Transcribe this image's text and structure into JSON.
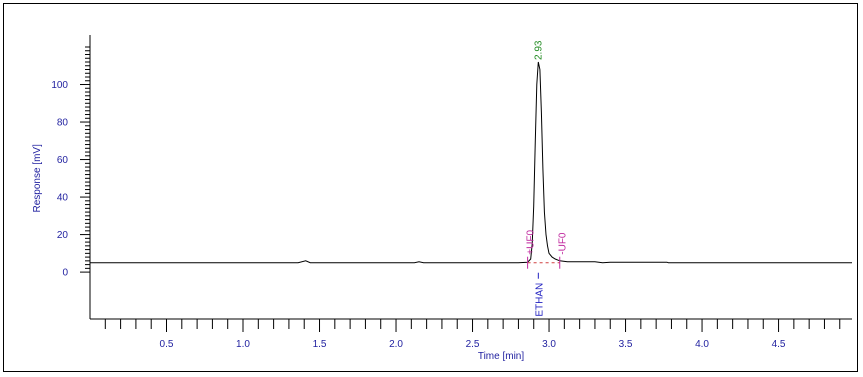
{
  "chart_data": {
    "type": "line",
    "title": "",
    "xlabel": "Time [min]",
    "ylabel": "Response [mV]",
    "xlim": [
      0,
      4.98
    ],
    "ylim": [
      -25,
      120
    ],
    "x_ticks": [
      0.5,
      1.0,
      1.5,
      2.0,
      2.5,
      3.0,
      3.5,
      4.0,
      4.5
    ],
    "x_tick_labels": [
      "0.5",
      "1.0",
      "1.5",
      "2.0",
      "2.5",
      "3.0",
      "3.5",
      "4.0",
      "4.5"
    ],
    "y_ticks": [
      0,
      20,
      40,
      60,
      80,
      100
    ],
    "y_tick_labels": [
      "0",
      "20",
      "40",
      "60",
      "80",
      "100"
    ],
    "grid": false,
    "series": [
      {
        "x": [
          0.0,
          1.36,
          1.41,
          1.44,
          1.5,
          2.12,
          2.15,
          2.18,
          2.8,
          2.86,
          2.88,
          2.89,
          2.9,
          2.91,
          2.92,
          2.93,
          2.94,
          2.95,
          2.96,
          2.97,
          2.98,
          2.99,
          3.0,
          3.02,
          3.04,
          3.07,
          3.12,
          3.3,
          3.35,
          3.4,
          3.77,
          3.78,
          4.98
        ],
        "y": [
          5,
          5,
          6,
          5,
          5,
          5,
          5.5,
          5,
          5,
          5.3,
          7,
          15,
          35,
          70,
          100,
          112,
          108,
          85,
          55,
          32,
          20,
          14,
          10,
          8,
          7,
          6,
          5.5,
          5.5,
          5,
          5.3,
          5.3,
          5,
          5
        ]
      }
    ],
    "peaks": [
      {
        "retention_time": "2.93",
        "name": "ETHAN",
        "start_label": "+UF0",
        "end_label": "-UF0",
        "start_x": 2.86,
        "end_x": 3.07
      }
    ],
    "colors": {
      "trace": "#000000",
      "axis_text": "#1f1f9f",
      "peak_label": "#1f8a1f",
      "marker": "#c0289f",
      "baseline": "#d04040",
      "compound": "#2020c0"
    }
  }
}
